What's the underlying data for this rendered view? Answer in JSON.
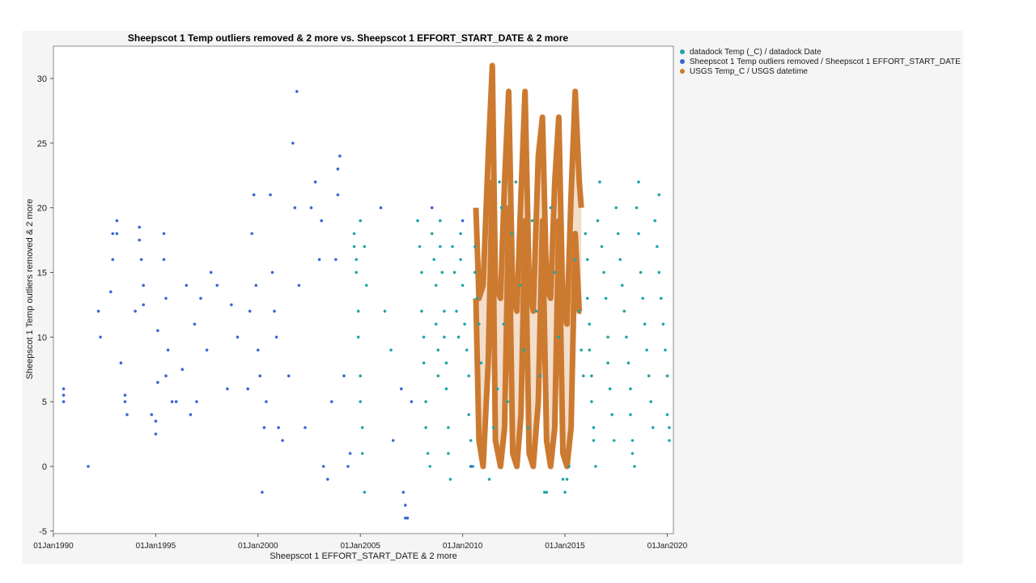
{
  "chart_data": {
    "type": "scatter",
    "title": "Sheepscot 1 Temp outliers removed & 2 more vs. Sheepscot 1 EFFORT_START_DATE & 2 more",
    "xlabel": "Sheepscot 1 EFFORT_START_DATE & 2 more",
    "ylabel": "Sheepscot 1 Temp outliers removed & 2 more",
    "xlim": [
      1990.0,
      2020.3
    ],
    "ylim": [
      -5.2,
      32.5
    ],
    "x_ticks": [
      "01Jan1990",
      "01Jan1995",
      "01Jan2000",
      "01Jan2005",
      "01Jan2010",
      "01Jan2015",
      "01Jan2020"
    ],
    "y_ticks": [
      -5,
      0,
      5,
      10,
      15,
      20,
      25,
      30
    ],
    "grid": false,
    "legend_position": "right",
    "series": [
      {
        "name": "datadock Temp (_C) / datadock Date",
        "color": "#20a6a6",
        "kind": "points",
        "points": [
          [
            2004.7,
            18
          ],
          [
            2004.7,
            17
          ],
          [
            2004.8,
            16
          ],
          [
            2004.8,
            15
          ],
          [
            2004.9,
            12
          ],
          [
            2004.9,
            10
          ],
          [
            2005.0,
            7
          ],
          [
            2005.0,
            5
          ],
          [
            2005.1,
            3
          ],
          [
            2005.1,
            1
          ],
          [
            2005.2,
            -2
          ],
          [
            2005.0,
            19
          ],
          [
            2005.2,
            17
          ],
          [
            2005.3,
            14
          ],
          [
            2006.2,
            12
          ],
          [
            2006.5,
            9
          ],
          [
            2007.8,
            19
          ],
          [
            2007.9,
            17
          ],
          [
            2008.0,
            15
          ],
          [
            2008.0,
            12
          ],
          [
            2008.1,
            10
          ],
          [
            2008.1,
            8
          ],
          [
            2008.2,
            5
          ],
          [
            2008.2,
            3
          ],
          [
            2008.3,
            1
          ],
          [
            2008.4,
            0
          ],
          [
            2008.5,
            18
          ],
          [
            2008.6,
            16
          ],
          [
            2008.7,
            14
          ],
          [
            2008.7,
            11
          ],
          [
            2008.8,
            9
          ],
          [
            2008.8,
            7
          ],
          [
            2008.9,
            19
          ],
          [
            2008.9,
            17
          ],
          [
            2009.0,
            15
          ],
          [
            2009.1,
            12
          ],
          [
            2009.1,
            10
          ],
          [
            2009.2,
            8
          ],
          [
            2009.2,
            6
          ],
          [
            2009.3,
            3
          ],
          [
            2009.3,
            1
          ],
          [
            2009.4,
            -1
          ],
          [
            2009.5,
            17
          ],
          [
            2009.6,
            15
          ],
          [
            2009.7,
            12
          ],
          [
            2009.8,
            10
          ],
          [
            2009.9,
            18
          ],
          [
            2009.9,
            16
          ],
          [
            2010.0,
            14
          ],
          [
            2010.1,
            11
          ],
          [
            2010.2,
            9
          ],
          [
            2010.3,
            7
          ],
          [
            2010.3,
            4
          ],
          [
            2010.4,
            2
          ],
          [
            2010.5,
            0
          ],
          [
            2010.6,
            17
          ],
          [
            2010.6,
            15
          ],
          [
            2010.7,
            13
          ],
          [
            2010.8,
            11
          ],
          [
            2010.9,
            8
          ],
          [
            2011.3,
            -1
          ],
          [
            2011.5,
            3
          ],
          [
            2011.7,
            6
          ],
          [
            2011.8,
            22
          ],
          [
            2011.9,
            20
          ],
          [
            2012.0,
            11
          ],
          [
            2012.2,
            5
          ],
          [
            2012.4,
            18
          ],
          [
            2012.6,
            22
          ],
          [
            2012.8,
            14
          ],
          [
            2013.0,
            9
          ],
          [
            2013.2,
            3
          ],
          [
            2013.4,
            19
          ],
          [
            2013.6,
            12
          ],
          [
            2013.8,
            7
          ],
          [
            2014.0,
            -2
          ],
          [
            2014.1,
            -2
          ],
          [
            2014.3,
            20
          ],
          [
            2014.5,
            15
          ],
          [
            2014.7,
            10
          ],
          [
            2014.9,
            -1
          ],
          [
            2015.0,
            -2
          ],
          [
            2015.1,
            -1
          ],
          [
            2015.2,
            0
          ],
          [
            2015.5,
            16
          ],
          [
            2015.7,
            12
          ],
          [
            2015.8,
            9
          ],
          [
            2015.9,
            7
          ],
          [
            2016.0,
            18
          ],
          [
            2016.1,
            16
          ],
          [
            2016.1,
            13
          ],
          [
            2016.2,
            11
          ],
          [
            2016.2,
            9
          ],
          [
            2016.3,
            7
          ],
          [
            2016.3,
            5
          ],
          [
            2016.4,
            3
          ],
          [
            2016.4,
            2
          ],
          [
            2016.5,
            0
          ],
          [
            2016.6,
            19
          ],
          [
            2016.7,
            22
          ],
          [
            2016.8,
            17
          ],
          [
            2016.9,
            15
          ],
          [
            2017.0,
            13
          ],
          [
            2017.1,
            10
          ],
          [
            2017.1,
            8
          ],
          [
            2017.2,
            6
          ],
          [
            2017.3,
            4
          ],
          [
            2017.4,
            2
          ],
          [
            2017.5,
            20
          ],
          [
            2017.6,
            18
          ],
          [
            2017.7,
            16
          ],
          [
            2017.8,
            14
          ],
          [
            2017.9,
            12
          ],
          [
            2018.0,
            10
          ],
          [
            2018.1,
            8
          ],
          [
            2018.2,
            6
          ],
          [
            2018.2,
            4
          ],
          [
            2018.3,
            2
          ],
          [
            2018.3,
            1
          ],
          [
            2018.4,
            0
          ],
          [
            2018.5,
            20
          ],
          [
            2018.6,
            18
          ],
          [
            2018.6,
            22
          ],
          [
            2018.7,
            15
          ],
          [
            2018.8,
            13
          ],
          [
            2018.9,
            11
          ],
          [
            2019.0,
            9
          ],
          [
            2019.1,
            7
          ],
          [
            2019.2,
            5
          ],
          [
            2019.3,
            3
          ],
          [
            2019.4,
            19
          ],
          [
            2019.5,
            17
          ],
          [
            2019.6,
            21
          ],
          [
            2019.6,
            15
          ],
          [
            2019.7,
            13
          ],
          [
            2019.8,
            11
          ],
          [
            2019.9,
            9
          ],
          [
            2020.0,
            7
          ],
          [
            2020.0,
            4
          ],
          [
            2020.1,
            3
          ],
          [
            2020.1,
            2
          ]
        ]
      },
      {
        "name": "Sheepscot 1 Temp outliers removed / Sheepscot 1 EFFORT_START_DATE",
        "color": "#3a66d6",
        "kind": "points",
        "points": [
          [
            1990.5,
            6
          ],
          [
            1990.5,
            5.5
          ],
          [
            1990.5,
            5
          ],
          [
            1991.7,
            0
          ],
          [
            1992.2,
            12
          ],
          [
            1992.3,
            10
          ],
          [
            1992.8,
            13.5
          ],
          [
            1992.9,
            16
          ],
          [
            1992.9,
            18
          ],
          [
            1993.1,
            18
          ],
          [
            1993.1,
            19
          ],
          [
            1993.3,
            8
          ],
          [
            1993.5,
            5.5
          ],
          [
            1993.5,
            5
          ],
          [
            1993.6,
            4
          ],
          [
            1994.0,
            12
          ],
          [
            1994.2,
            18.5
          ],
          [
            1994.2,
            17.5
          ],
          [
            1994.3,
            16
          ],
          [
            1994.4,
            14
          ],
          [
            1994.4,
            12.5
          ],
          [
            1994.8,
            4
          ],
          [
            1995.0,
            3.5
          ],
          [
            1995.0,
            2.5
          ],
          [
            1995.1,
            6.5
          ],
          [
            1995.1,
            10.5
          ],
          [
            1995.4,
            18
          ],
          [
            1995.4,
            16
          ],
          [
            1995.5,
            13
          ],
          [
            1995.6,
            9
          ],
          [
            1995.5,
            7
          ],
          [
            1995.8,
            5
          ],
          [
            1996.0,
            5
          ],
          [
            1996.3,
            7.5
          ],
          [
            1996.5,
            14
          ],
          [
            1996.7,
            4
          ],
          [
            1996.9,
            11
          ],
          [
            1997.0,
            5
          ],
          [
            1997.2,
            13
          ],
          [
            1997.5,
            9
          ],
          [
            1997.7,
            15
          ],
          [
            1998.0,
            14
          ],
          [
            1998.5,
            6
          ],
          [
            1998.7,
            12.5
          ],
          [
            1999.0,
            10
          ],
          [
            1999.5,
            6
          ],
          [
            1999.6,
            12
          ],
          [
            1999.7,
            18
          ],
          [
            1999.8,
            21
          ],
          [
            1999.9,
            14
          ],
          [
            2000.0,
            9
          ],
          [
            2000.1,
            7
          ],
          [
            2000.2,
            -2
          ],
          [
            2000.3,
            3
          ],
          [
            2000.4,
            5
          ],
          [
            2000.6,
            21
          ],
          [
            2000.7,
            15
          ],
          [
            2000.8,
            12
          ],
          [
            2000.9,
            10
          ],
          [
            2001.0,
            3
          ],
          [
            2001.2,
            2
          ],
          [
            2001.5,
            7
          ],
          [
            2001.7,
            25
          ],
          [
            2001.8,
            20
          ],
          [
            2001.9,
            29
          ],
          [
            2002.0,
            14
          ],
          [
            2002.3,
            3
          ],
          [
            2002.6,
            20
          ],
          [
            2002.8,
            22
          ],
          [
            2003.0,
            16
          ],
          [
            2003.1,
            19
          ],
          [
            2003.2,
            0
          ],
          [
            2003.4,
            -1
          ],
          [
            2003.6,
            5
          ],
          [
            2003.8,
            16
          ],
          [
            2003.9,
            21
          ],
          [
            2003.9,
            23
          ],
          [
            2004.0,
            24
          ],
          [
            2004.2,
            7
          ],
          [
            2004.4,
            0
          ],
          [
            2004.5,
            1
          ],
          [
            2006.0,
            20
          ],
          [
            2006.6,
            2
          ],
          [
            2007.0,
            6
          ],
          [
            2007.1,
            -2
          ],
          [
            2007.2,
            -3
          ],
          [
            2007.2,
            -4
          ],
          [
            2007.3,
            -4
          ],
          [
            2007.5,
            5
          ],
          [
            2008.5,
            20
          ],
          [
            2010.0,
            19
          ],
          [
            2010.4,
            0
          ]
        ]
      },
      {
        "name": "USGS Temp_C / USGS datetime",
        "color": "#cc7a30",
        "kind": "band",
        "x": [
          2010.65,
          2010.8,
          2011.0,
          2011.25,
          2011.45,
          2011.6,
          2011.85,
          2012.05,
          2012.25,
          2012.45,
          2012.65,
          2012.85,
          2013.05,
          2013.25,
          2013.45,
          2013.7,
          2013.9,
          2014.1,
          2014.3,
          2014.5,
          2014.7,
          2014.9,
          2015.1,
          2015.3,
          2015.5,
          2015.7,
          2015.8
        ],
        "upper": [
          20,
          13,
          14,
          24,
          31,
          14,
          13,
          22,
          29,
          13,
          12,
          21,
          29,
          14,
          12,
          24,
          27,
          14,
          13,
          22,
          27,
          12,
          11,
          21,
          29,
          22,
          20
        ],
        "lower": [
          13,
          2,
          0,
          8,
          22,
          2,
          0,
          3,
          20,
          1,
          0,
          4,
          19,
          1,
          0,
          5,
          19,
          2,
          0,
          3,
          19,
          1,
          0,
          3,
          18,
          12,
          12
        ]
      }
    ]
  }
}
